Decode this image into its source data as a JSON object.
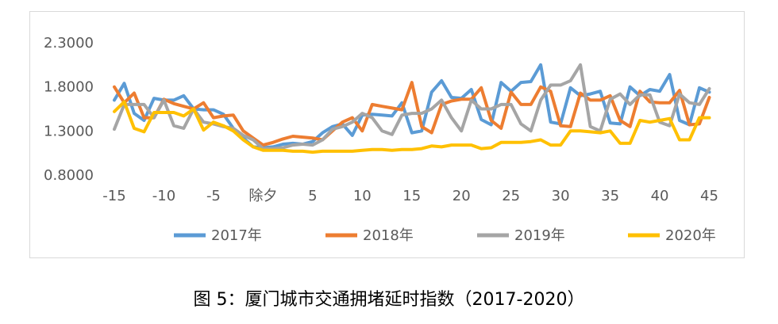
{
  "caption": "图 5：厦门城市交通拥堵延时指数（2017-2020）",
  "chart_data": {
    "type": "line",
    "title": "",
    "xlabel": "",
    "ylabel": "",
    "ylim": [
      0.8,
      2.3
    ],
    "yticks": [
      "0.8000",
      "1.3000",
      "1.8000",
      "2.3000"
    ],
    "ytick_values": [
      0.8,
      1.3,
      1.8,
      2.3
    ],
    "x_start": -15,
    "x_end": 46,
    "xticks": [
      "-15",
      "-10",
      "-5",
      "除夕",
      "5",
      "10",
      "15",
      "20",
      "25",
      "30",
      "35",
      "40",
      "45"
    ],
    "xtick_values": [
      -15,
      -10,
      -5,
      0,
      5,
      10,
      15,
      20,
      25,
      30,
      35,
      40,
      45
    ],
    "grid": false,
    "legend": "bottom",
    "series": [
      {
        "name": "2017年",
        "color": "#5b9bd5",
        "values": [
          1.65,
          1.84,
          1.5,
          1.42,
          1.67,
          1.65,
          1.65,
          1.7,
          1.55,
          1.54,
          1.54,
          1.49,
          1.33,
          1.22,
          1.12,
          1.11,
          1.12,
          1.15,
          1.16,
          1.15,
          1.18,
          1.28,
          1.35,
          1.38,
          1.25,
          1.48,
          1.49,
          1.48,
          1.47,
          1.62,
          1.28,
          1.3,
          1.74,
          1.87,
          1.68,
          1.67,
          1.77,
          1.43,
          1.37,
          1.85,
          1.75,
          1.85,
          1.86,
          2.05,
          1.4,
          1.38,
          1.79,
          1.7,
          1.72,
          1.75,
          1.39,
          1.38,
          1.8,
          1.7,
          1.77,
          1.75,
          1.94,
          1.42,
          1.37,
          1.79,
          1.74
        ]
      },
      {
        "name": "2018年",
        "color": "#ed7d31",
        "values": [
          1.8,
          1.62,
          1.73,
          1.45,
          1.45,
          1.66,
          1.61,
          1.58,
          1.55,
          1.62,
          1.45,
          1.47,
          1.48,
          1.3,
          1.22,
          1.14,
          1.17,
          1.21,
          1.24,
          1.23,
          1.22,
          1.2,
          1.3,
          1.4,
          1.45,
          1.3,
          1.6,
          1.58,
          1.56,
          1.54,
          1.85,
          1.35,
          1.28,
          1.6,
          1.64,
          1.66,
          1.66,
          1.79,
          1.42,
          1.33,
          1.74,
          1.6,
          1.6,
          1.8,
          1.75,
          1.36,
          1.35,
          1.73,
          1.65,
          1.65,
          1.7,
          1.42,
          1.35,
          1.75,
          1.63,
          1.62,
          1.62,
          1.76,
          1.37,
          1.38,
          1.68
        ]
      },
      {
        "name": "2019年",
        "color": "#a5a5a5",
        "values": [
          1.32,
          1.6,
          1.6,
          1.6,
          1.45,
          1.65,
          1.36,
          1.33,
          1.55,
          1.4,
          1.38,
          1.35,
          1.33,
          1.25,
          1.2,
          1.1,
          1.1,
          1.11,
          1.14,
          1.15,
          1.14,
          1.2,
          1.32,
          1.35,
          1.4,
          1.5,
          1.45,
          1.3,
          1.26,
          1.48,
          1.5,
          1.5,
          1.55,
          1.65,
          1.45,
          1.3,
          1.65,
          1.55,
          1.55,
          1.6,
          1.6,
          1.38,
          1.3,
          1.65,
          1.82,
          1.82,
          1.87,
          2.05,
          1.35,
          1.3,
          1.66,
          1.72,
          1.6,
          1.71,
          1.71,
          1.4,
          1.36,
          1.72,
          1.62,
          1.6,
          1.78
        ]
      },
      {
        "name": "2020年",
        "color": "#ffc000",
        "values": [
          1.52,
          1.63,
          1.33,
          1.29,
          1.51,
          1.51,
          1.51,
          1.47,
          1.55,
          1.31,
          1.4,
          1.36,
          1.3,
          1.2,
          1.12,
          1.08,
          1.08,
          1.08,
          1.07,
          1.07,
          1.06,
          1.07,
          1.07,
          1.07,
          1.07,
          1.08,
          1.09,
          1.09,
          1.08,
          1.09,
          1.09,
          1.1,
          1.13,
          1.12,
          1.14,
          1.14,
          1.14,
          1.1,
          1.11,
          1.17,
          1.17,
          1.17,
          1.18,
          1.2,
          1.14,
          1.14,
          1.3,
          1.3,
          1.29,
          1.28,
          1.3,
          1.16,
          1.16,
          1.42,
          1.4,
          1.42,
          1.44,
          1.2,
          1.2,
          1.45,
          1.45
        ]
      }
    ]
  }
}
